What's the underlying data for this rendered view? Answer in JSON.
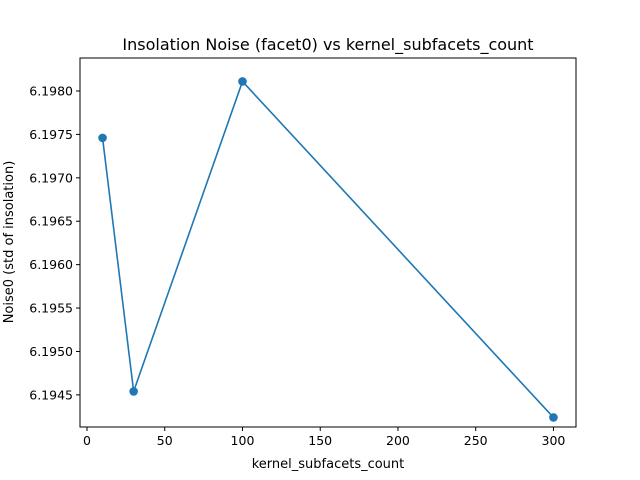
{
  "chart_data": {
    "type": "line",
    "title": "Insolation Noise (facet0) vs kernel_subfacets_count",
    "xlabel": "kernel_subfacets_count",
    "ylabel": "Noise0 (std of insolation)",
    "x_ticks": [
      0,
      50,
      100,
      150,
      200,
      250,
      300
    ],
    "y_ticks": [
      "6.1945",
      "6.1950",
      "6.1955",
      "6.1960",
      "6.1965",
      "6.1970",
      "6.1975",
      "6.1980"
    ],
    "xlim": [
      -4.5,
      314.5
    ],
    "ylim": [
      6.19413,
      6.19838
    ],
    "grid": false,
    "legend": "none",
    "series": [
      {
        "color": "#1f77b4",
        "marker": "circle",
        "x": [
          10,
          30,
          100,
          300
        ],
        "y": [
          6.19746,
          6.19454,
          6.19811,
          6.19424
        ]
      }
    ]
  }
}
